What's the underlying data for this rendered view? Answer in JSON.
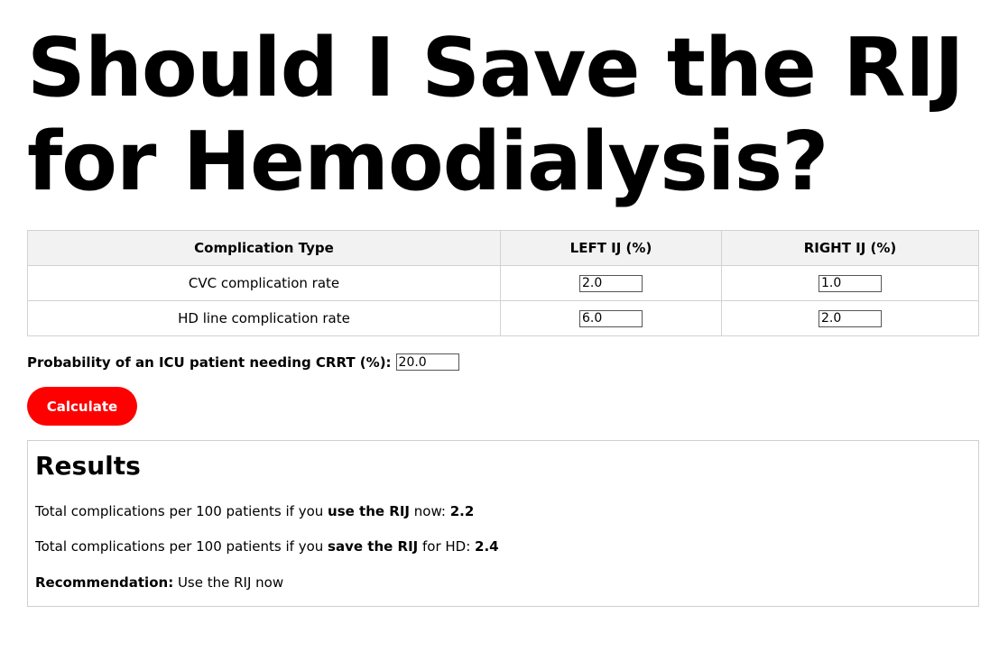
{
  "title": "Should I Save the RIJ for Hemodialysis?",
  "table": {
    "headers": [
      "Complication Type",
      "LEFT IJ (%)",
      "RIGHT IJ (%)"
    ],
    "rows": [
      {
        "label": "CVC complication rate",
        "left": "2.0",
        "right": "1.0"
      },
      {
        "label": "HD line complication rate",
        "left": "6.0",
        "right": "2.0"
      }
    ]
  },
  "crrt": {
    "label": "Probability of an ICU patient needing CRRT (%):",
    "value": "20.0"
  },
  "calculate_label": "Calculate",
  "results": {
    "heading": "Results",
    "use_now": {
      "prefix": "Total complications per 100 patients if you ",
      "emphasis": "use the RIJ",
      "suffix": " now: ",
      "value": "2.2"
    },
    "save_for_hd": {
      "prefix": "Total complications per 100 patients if you ",
      "emphasis": "save the RIJ",
      "suffix": " for HD: ",
      "value": "2.4"
    },
    "recommendation": {
      "label": "Recommendation:",
      "value": " Use the RIJ now"
    }
  },
  "colors": {
    "button_bg": "#ff0000",
    "button_text": "#ffffff",
    "header_bg": "#f2f2f2",
    "border": "#d2d2d2"
  }
}
